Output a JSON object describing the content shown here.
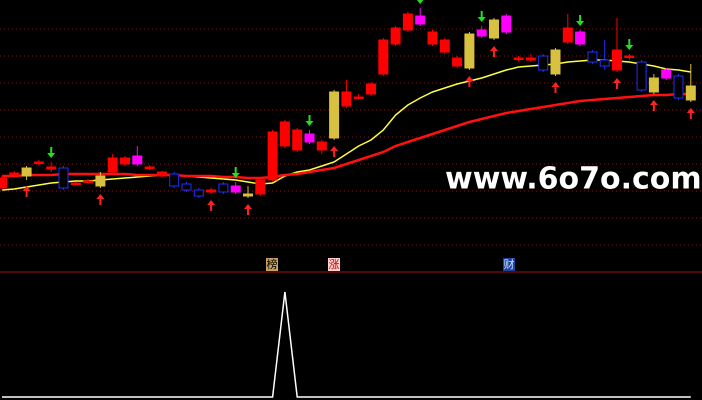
{
  "chart_data": [
    {
      "type": "candlestick",
      "watermark": "www.6o7o.com",
      "tags": [
        "榜",
        "涨",
        "财"
      ],
      "ylim": [
        0,
        270
      ],
      "yticks": [
        25,
        52,
        79,
        106,
        133,
        160,
        187,
        214,
        241
      ],
      "grid": true,
      "open": [
        82,
        95,
        94,
        107,
        103,
        102,
        87,
        88,
        84,
        98,
        106,
        106,
        103,
        94,
        96,
        86,
        80,
        78,
        86,
        78,
        74,
        76,
        90,
        124,
        120,
        128,
        128,
        132,
        164,
        172,
        176,
        196,
        226,
        240,
        246,
        238,
        230,
        212,
        202,
        234,
        232,
        238,
        212,
        212,
        214,
        196,
        228,
        226,
        218,
        210,
        200,
        214,
        208,
        178,
        192,
        194,
        170
      ],
      "high": [
        94,
        99,
        104,
        110,
        108,
        104,
        88,
        91,
        98,
        116,
        114,
        124,
        105,
        99,
        98,
        88,
        82,
        82,
        88,
        88,
        84,
        92,
        140,
        150,
        142,
        140,
        130,
        180,
        190,
        176,
        188,
        232,
        244,
        258,
        262,
        240,
        232,
        214,
        238,
        244,
        252,
        256,
        214,
        216,
        216,
        222,
        256,
        240,
        220,
        230,
        252,
        216,
        210,
        196,
        202,
        196,
        206
      ],
      "low": [
        80,
        92,
        90,
        105,
        98,
        80,
        85,
        86,
        82,
        96,
        104,
        104,
        100,
        93,
        82,
        78,
        72,
        76,
        76,
        76,
        72,
        74,
        88,
        122,
        118,
        126,
        116,
        130,
        162,
        170,
        174,
        194,
        224,
        238,
        244,
        224,
        216,
        202,
        200,
        232,
        230,
        236,
        209,
        208,
        198,
        194,
        226,
        224,
        206,
        200,
        198,
        210,
        178,
        176,
        190,
        170,
        168
      ],
      "close": [
        92,
        97,
        102,
        108,
        101,
        82,
        86,
        89,
        94,
        112,
        112,
        114,
        102,
        98,
        84,
        80,
        74,
        80,
        78,
        84,
        76,
        90,
        138,
        148,
        140,
        136,
        120,
        178,
        178,
        173,
        186,
        230,
        242,
        256,
        254,
        226,
        218,
        204,
        236,
        240,
        250,
        254,
        211,
        210,
        200,
        220,
        242,
        238,
        208,
        204,
        220,
        213,
        180,
        192,
        200,
        172,
        184
      ],
      "colors": [
        "#ff0000",
        "#ff0000",
        "#d8c040",
        "#ff0000",
        "#ff0000",
        "#2030ff",
        "#ff0000",
        "#ff0000",
        "#d8c040",
        "#ff0000",
        "#ff0000",
        "#ff00ff",
        "#ff0000",
        "#ff0000",
        "#2030ff",
        "#2030ff",
        "#2030ff",
        "#ff0000",
        "#2030ff",
        "#ff00ff",
        "#d8c040",
        "#ff0000",
        "#ff0000",
        "#ff0000",
        "#ff0000",
        "#ff00ff",
        "#ff0000",
        "#d8c040",
        "#ff0000",
        "#ff0000",
        "#ff0000",
        "#ff0000",
        "#ff0000",
        "#ff0000",
        "#ff00ff",
        "#ff0000",
        "#ff0000",
        "#ff0000",
        "#d8c040",
        "#ff00ff",
        "#d8c040",
        "#ff00ff",
        "#ff0000",
        "#ff0000",
        "#2030ff",
        "#d8c040",
        "#ff0000",
        "#ff00ff",
        "#2030ff",
        "#2030ff",
        "#ff0000",
        "#ff0000",
        "#2030ff",
        "#d8c040",
        "#ff00ff",
        "#2030ff",
        "#d8c040"
      ],
      "series": [
        {
          "color": "#ffff40",
          "values": [
            80,
            81,
            83,
            85,
            87,
            88,
            89,
            89,
            90,
            91,
            92,
            93,
            94,
            95,
            95,
            94,
            93,
            92,
            91,
            90,
            88,
            86,
            87,
            94,
            98,
            100,
            104,
            108,
            116,
            124,
            130,
            140,
            155,
            165,
            172,
            178,
            182,
            186,
            189,
            192,
            196,
            200,
            203,
            204,
            205,
            206,
            208,
            209,
            210,
            210,
            209,
            208,
            206,
            204,
            201,
            200,
            198
          ]
        },
        {
          "color": "#ff1010",
          "values": [
            94,
            94,
            95,
            95,
            95,
            96,
            96,
            96,
            96,
            96,
            96,
            95,
            95,
            95,
            95,
            94,
            94,
            94,
            93,
            93,
            92,
            92,
            93,
            95,
            96,
            98,
            100,
            102,
            106,
            110,
            114,
            118,
            124,
            128,
            132,
            136,
            140,
            144,
            148,
            151,
            154,
            157,
            159,
            161,
            163,
            165,
            167,
            169,
            170,
            171,
            172,
            173,
            174,
            175,
            175,
            176,
            176
          ]
        }
      ],
      "buy_signals": [
        2,
        8,
        17,
        20,
        27,
        38,
        40,
        45,
        50,
        53,
        56
      ],
      "sell_signals": [
        4,
        19,
        25,
        34,
        39,
        47,
        51
      ]
    },
    {
      "type": "line",
      "ylim": [
        0,
        1.2
      ],
      "color": "#ffffff",
      "values": [
        0,
        0,
        0,
        0,
        0,
        0,
        0,
        0,
        0,
        0,
        0,
        0,
        0,
        0,
        0,
        0,
        0,
        0,
        0,
        0,
        0,
        0,
        0,
        1,
        0,
        0,
        0,
        0,
        0,
        0,
        0,
        0,
        0,
        0,
        0,
        0,
        0,
        0,
        0,
        0,
        0,
        0,
        0,
        0,
        0,
        0,
        0,
        0,
        0,
        0,
        0,
        0,
        0,
        0,
        0,
        0,
        0
      ]
    }
  ]
}
